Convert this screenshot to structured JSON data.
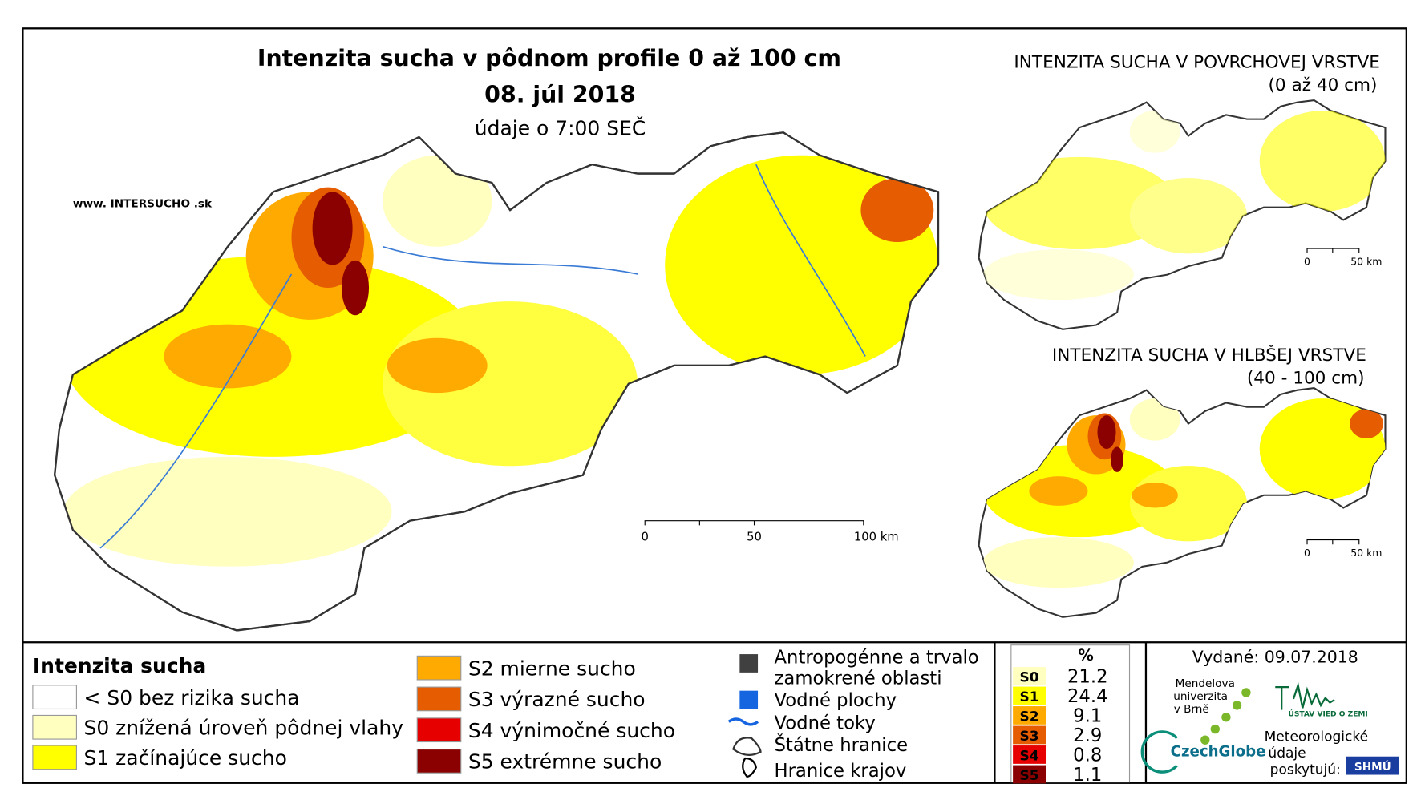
{
  "header": {
    "title": "Intenzita sucha v pôdnom profile 0 až 100 cm",
    "date": "08. júl 2018",
    "subtitle": "údaje o 7:00 SEČ",
    "website": "www. INTERSUCHO .sk"
  },
  "main_scale": [
    "0",
    "50",
    "100 km"
  ],
  "insets": [
    {
      "title": "INTENZITA SUCHA V POVRCHOVEJ VRSTVE",
      "subtitle": "(0 až 40 cm)",
      "scale": [
        "0",
        "50 km"
      ]
    },
    {
      "title": "INTENZITA SUCHA V HLBŠEJ VRSTVE",
      "subtitle": "(40 - 100 cm)",
      "scale": [
        "0",
        "50 km"
      ]
    }
  ],
  "legend": {
    "title": "Intenzita sucha",
    "items": [
      {
        "label": "< S0 bez rizika sucha",
        "color": "#ffffff"
      },
      {
        "label": "S0 znížená úroveň pôdnej vlahy",
        "color": "#ffffc0"
      },
      {
        "label": "S1 začínajúce sucho",
        "color": "#ffff00"
      },
      {
        "label": "S2 mierne sucho",
        "color": "#ffaa00"
      },
      {
        "label": "S3 výrazné sucho",
        "color": "#e65c00"
      },
      {
        "label": "S4 výnimočné sucho",
        "color": "#e60000"
      },
      {
        "label": "S5 extrémne sucho",
        "color": "#8b0000"
      }
    ]
  },
  "symbols": [
    "Antropogénne a trvalo",
    "zamokrené oblasti",
    "Vodné plochy",
    "Vodné toky",
    "Štátne hranice",
    "Hranice krajov"
  ],
  "table": {
    "header": "%",
    "rows": [
      [
        "S0",
        21.2
      ],
      [
        "S1",
        24.4
      ],
      [
        "S2",
        9.1
      ],
      [
        "S3",
        2.9
      ],
      [
        "S4",
        0.8
      ],
      [
        "S5",
        1.1
      ]
    ]
  },
  "footer": {
    "issued": "Vydané: 09.07.2018",
    "mendel": [
      "Mendelova",
      "univerzita",
      "v Brně"
    ],
    "czechglobe": "CzechGlobe",
    "ustav": "ÚSTAV VIED O ZEMI",
    "provided": [
      "Meteorologické",
      "údaje",
      "poskytujú:"
    ],
    "shmu": "SHMÚ"
  }
}
